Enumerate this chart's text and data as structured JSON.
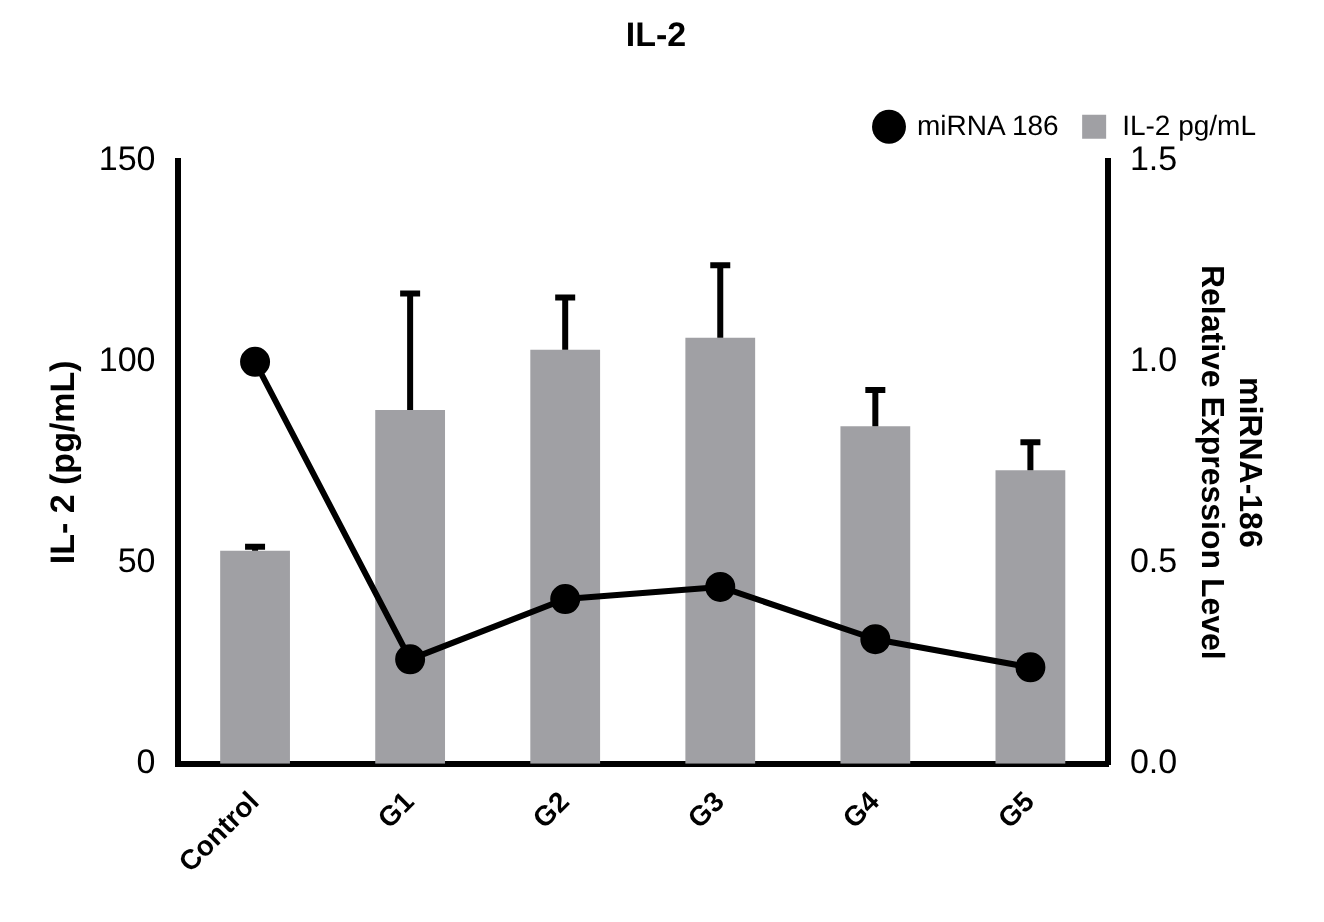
{
  "chart_data": {
    "type": "bar",
    "title": "IL-2",
    "ylabel": "IL- 2 (pg/mL)",
    "y2label": "miRNA-186\nRelative Expression Level",
    "categories": [
      "Control",
      "G1",
      "G2",
      "G3",
      "G4",
      "G5"
    ],
    "series": [
      {
        "name": "miRNA 186",
        "type": "line",
        "axis": "y2",
        "color": "#000000",
        "marker": "circle",
        "values": [
          1.0,
          0.26,
          0.41,
          0.44,
          0.31,
          0.24
        ]
      },
      {
        "name": "IL-2 pg/mL",
        "color": "#a0a0a4",
        "values": [
          53,
          88,
          103,
          106,
          84,
          73
        ],
        "errors": [
          [
            53,
            54
          ],
          [
            88,
            117
          ],
          [
            103,
            116
          ],
          [
            106,
            124
          ],
          [
            84,
            93
          ],
          [
            73,
            80
          ]
        ]
      }
    ],
    "ylim": [
      0,
      150
    ],
    "yticks": [
      0,
      50,
      100,
      150
    ],
    "y2lim": [
      0,
      1.5
    ],
    "y2ticks": [
      {
        "value": 0,
        "label": "0.0"
      },
      0.5,
      {
        "value": 1,
        "label": "1.0"
      },
      1.5
    ],
    "legend": "top right",
    "grid": false
  }
}
